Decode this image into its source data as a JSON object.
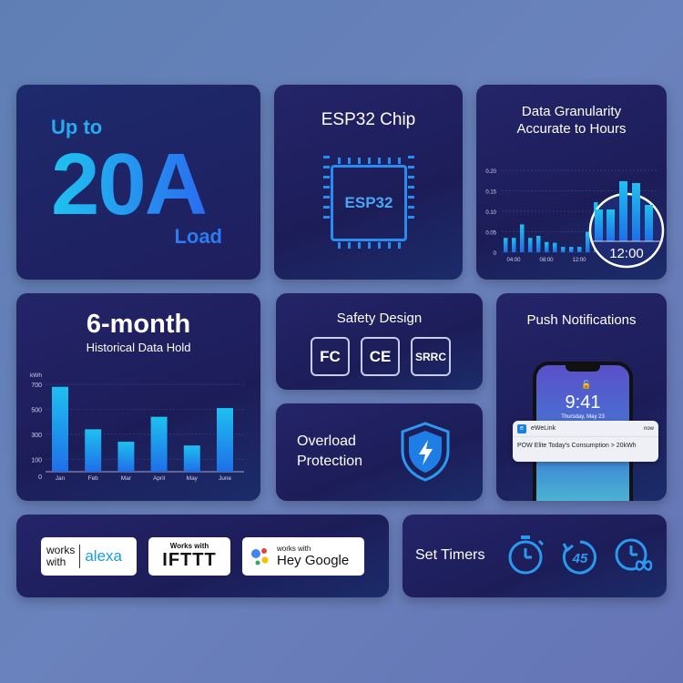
{
  "load_card": {
    "prefix": "Up to",
    "value": "20A",
    "suffix": "Load"
  },
  "chip_card": {
    "title": "ESP32 Chip",
    "chip_label": "ESP32"
  },
  "granularity_card": {
    "title_line1": "Data Granularity",
    "title_line2": "Accurate to Hours",
    "magnifier_label": "12:00"
  },
  "history_card": {
    "title": "6-month",
    "subtitle": "Historical Data Hold"
  },
  "safety_card": {
    "title": "Safety Design",
    "certs": [
      "FC",
      "CE",
      "SRRC"
    ]
  },
  "overload_card": {
    "line1": "Overload",
    "line2": "Protection",
    "icon": "shield-lightning-icon"
  },
  "push_card": {
    "title": "Push Notifications",
    "phone_time": "9:41",
    "phone_date": "Thursday, May 23",
    "notif_app": "eWeLink",
    "notif_time": "now",
    "notif_text": "POW Elite Today's Consumption > 20kWh"
  },
  "assistants_card": {
    "alexa_works": "works",
    "alexa_with": "with",
    "alexa_brand": "alexa",
    "ifttt_works": "Works with",
    "ifttt_brand": "IFTTT",
    "google_works": "works with",
    "google_brand": "Hey Google"
  },
  "timers_card": {
    "title": "Set Timers",
    "timer_value": "45"
  },
  "colors": {
    "accent": "#2a8cf0",
    "card": "#1e1f5e",
    "background": "#6a82bd"
  },
  "chart_data": [
    {
      "type": "bar",
      "ylim": [
        0,
        0.2
      ],
      "yticks": [
        "0",
        "0.05",
        "0.10",
        "0.15",
        "0.20"
      ],
      "xticks": [
        "04:00",
        "08:00",
        "12:00",
        "16:00"
      ],
      "values": [
        0.035,
        0.035,
        0.068,
        0.035,
        0.04,
        0.025,
        0.023,
        0.013,
        0.013,
        0.013,
        0.05,
        0.122,
        0.075,
        0.05,
        0.067,
        0.067,
        0.13,
        0.125,
        0.08
      ]
    },
    {
      "type": "bar",
      "ylabel": "kWh",
      "ylim": [
        0,
        700
      ],
      "yticks": [
        "0",
        "100",
        "300",
        "500",
        "700"
      ],
      "categories": [
        "Jan",
        "Feb",
        "Mar",
        "April",
        "May",
        "June"
      ],
      "values": [
        680,
        340,
        240,
        440,
        210,
        510
      ]
    }
  ]
}
